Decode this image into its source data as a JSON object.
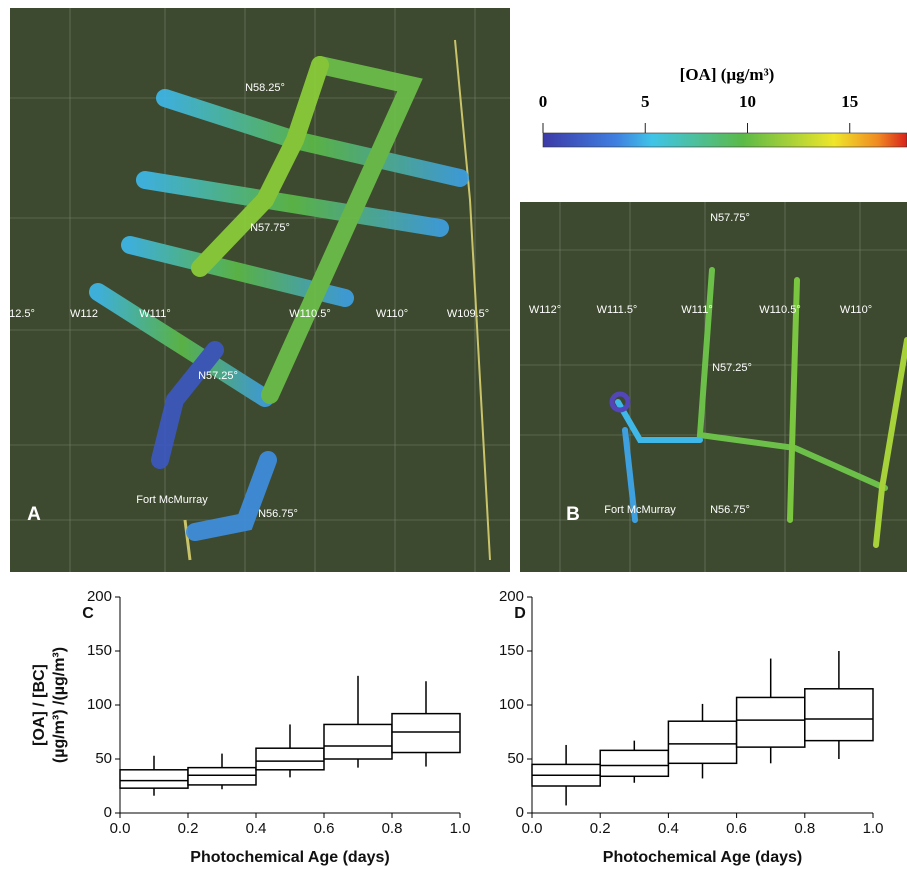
{
  "maps": {
    "a": {
      "letter": "A",
      "labels": [
        "N58.25°",
        "N57.75°",
        "N57.25°",
        "N56.75°",
        "12.5°",
        "W112",
        "W111°",
        "W110.5°",
        "W110°",
        "W109.5°",
        "Fort McMurray"
      ]
    },
    "b": {
      "letter": "B",
      "labels": [
        "N57.75°",
        "N57.25°",
        "N56.75°",
        "W112°",
        "W111.5°",
        "W111°",
        "W110.5°",
        "W110°",
        "Fort McMurray"
      ]
    }
  },
  "colorbar": {
    "title": "[OA] (µg/m³)",
    "clim": [
      0,
      17.8
    ],
    "cticks": [
      0,
      5,
      10,
      15
    ]
  },
  "chart_data": [
    {
      "type": "box",
      "panel": "C",
      "ylabel": [
        "[OA] / [BC]",
        "(µg/m³) /(µg/m³)"
      ],
      "xlabel": "Photochemical Age (days)",
      "bins": [
        0,
        0.2,
        0.4,
        0.6,
        0.8,
        1.0
      ],
      "color": "#000000",
      "whisker_low": [
        16,
        22,
        33,
        42,
        43
      ],
      "q1": [
        23,
        26,
        40,
        50,
        56
      ],
      "median": [
        30,
        35,
        48,
        62,
        75
      ],
      "q3": [
        40,
        42,
        60,
        82,
        92
      ],
      "whisker_high": [
        53,
        55,
        82,
        127,
        122
      ],
      "xlim": [
        0,
        1
      ],
      "xticks": [
        {
          "value": 0,
          "label": "0.0"
        },
        0.2,
        0.4,
        0.6,
        0.8,
        {
          "value": 1,
          "label": "1.0"
        }
      ],
      "ylim": [
        0,
        200
      ],
      "yticks": [
        0,
        50,
        100,
        150,
        200
      ]
    },
    {
      "type": "box",
      "panel": "D",
      "xlabel": "Photochemical Age (days)",
      "bins": [
        0,
        0.2,
        0.4,
        0.6,
        0.8,
        1.0
      ],
      "color": "#000000",
      "whisker_low": [
        7,
        28,
        32,
        46,
        50
      ],
      "q1": [
        25,
        34,
        46,
        61,
        67
      ],
      "median": [
        35,
        44,
        64,
        86,
        87
      ],
      "q3": [
        45,
        58,
        85,
        107,
        115
      ],
      "whisker_high": [
        63,
        67,
        101,
        143,
        150
      ],
      "xlim": [
        0,
        1
      ],
      "xticks": [
        {
          "value": 0,
          "label": "0.0"
        },
        0.2,
        0.4,
        0.6,
        0.8,
        {
          "value": 1,
          "label": "1.0"
        }
      ],
      "ylim": [
        0,
        200
      ],
      "yticks": [
        0,
        50,
        100,
        150,
        200
      ]
    }
  ]
}
